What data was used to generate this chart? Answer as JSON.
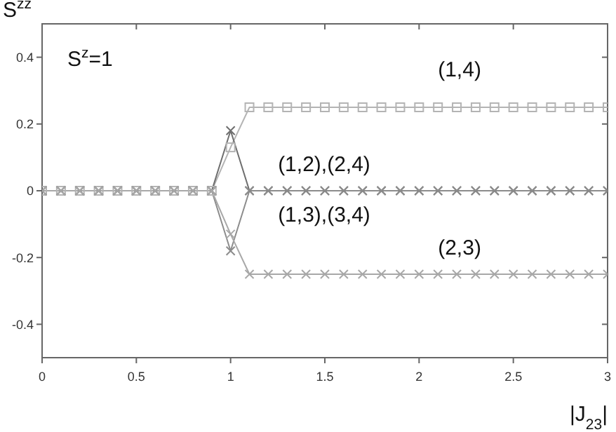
{
  "chart_data": {
    "type": "line",
    "ylabel": "S$^{zz}$",
    "xlabel": "|J$_{23}$|",
    "annotations": [
      "S$^{z}$=1"
    ],
    "x": [
      0,
      0.1,
      0.2,
      0.3,
      0.4,
      0.5,
      0.6,
      0.7,
      0.8,
      0.9,
      1.0,
      1.1,
      1.2,
      1.3,
      1.4,
      1.5,
      1.6,
      1.7,
      1.8,
      1.9,
      2.0,
      2.1,
      2.2,
      2.3,
      2.4,
      2.5,
      2.6,
      2.7,
      2.8,
      2.9,
      3.0
    ],
    "series": [
      {
        "name": "(1,4)",
        "color": "#b4b4b4",
        "marker": "square",
        "values": [
          0,
          0,
          0,
          0,
          0,
          0,
          0,
          0,
          0,
          0,
          0.13,
          0.25,
          0.25,
          0.25,
          0.25,
          0.25,
          0.25,
          0.25,
          0.25,
          0.25,
          0.25,
          0.25,
          0.25,
          0.25,
          0.25,
          0.25,
          0.25,
          0.25,
          0.25,
          0.25,
          0.25
        ]
      },
      {
        "name": "(1,2),(2,4)",
        "color": "#6e6e6e",
        "marker": "cross",
        "values": [
          0,
          0,
          0,
          0,
          0,
          0,
          0,
          0,
          0,
          0,
          0.18,
          0,
          0,
          0,
          0,
          0,
          0,
          0,
          0,
          0,
          0,
          0,
          0,
          0,
          0,
          0,
          0,
          0,
          0,
          0,
          0
        ]
      },
      {
        "name": "(1,3),(3,4)",
        "color": "#8c8c8c",
        "marker": "cross",
        "values": [
          0,
          0,
          0,
          0,
          0,
          0,
          0,
          0,
          0,
          0,
          -0.18,
          0,
          0,
          0,
          0,
          0,
          0,
          0,
          0,
          0,
          0,
          0,
          0,
          0,
          0,
          0,
          0,
          0,
          0,
          0,
          0
        ]
      },
      {
        "name": "(2,3)",
        "color": "#a8a8a8",
        "marker": "cross",
        "values": [
          0,
          0,
          0,
          0,
          0,
          0,
          0,
          0,
          0,
          0,
          -0.13,
          -0.25,
          -0.25,
          -0.25,
          -0.25,
          -0.25,
          -0.25,
          -0.25,
          -0.25,
          -0.25,
          -0.25,
          -0.25,
          -0.25,
          -0.25,
          -0.25,
          -0.25,
          -0.25,
          -0.25,
          -0.25,
          -0.25,
          -0.25
        ]
      }
    ],
    "xlim": [
      0,
      3
    ],
    "xticks": [
      0,
      0.5,
      1,
      1.5,
      2,
      2.5,
      3
    ],
    "ylim": [
      -0.5,
      0.5
    ],
    "yticks": [
      -0.4,
      -0.2,
      0,
      0.2,
      0.4
    ],
    "grid": false,
    "legend": false,
    "line_style": "solid"
  }
}
